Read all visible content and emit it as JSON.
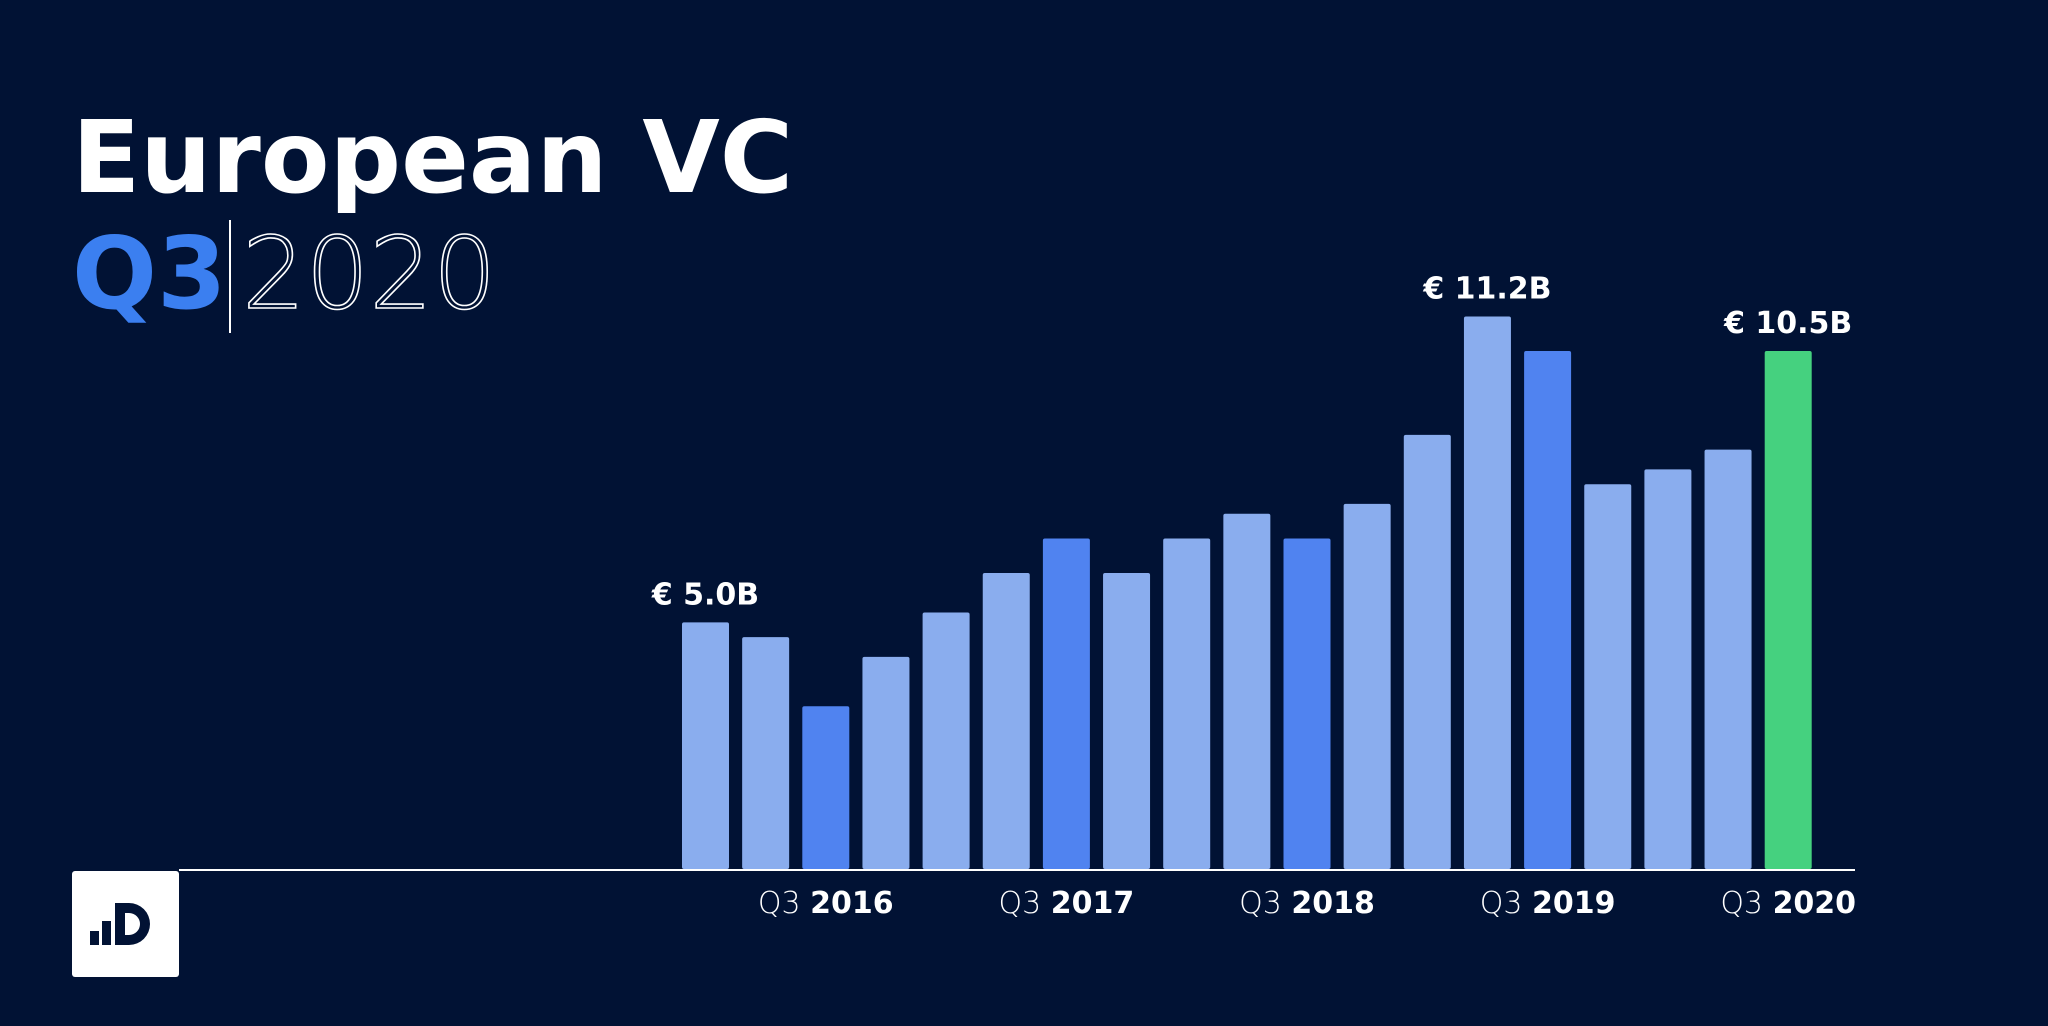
{
  "chart_data": {
    "type": "bar",
    "title": "European VC",
    "subtitle_quarter": "Q3",
    "subtitle_year": "2020",
    "categories": [
      null,
      null,
      "Q3 2016",
      null,
      null,
      null,
      "Q3 2017",
      null,
      null,
      null,
      "Q3 2018",
      null,
      null,
      null,
      "Q3 2019",
      null,
      null,
      null,
      "Q3 2020"
    ],
    "values": [
      5.0,
      4.7,
      3.3,
      4.3,
      5.2,
      6.0,
      6.7,
      6.0,
      6.7,
      7.2,
      6.7,
      7.4,
      8.8,
      11.2,
      10.5,
      7.8,
      8.1,
      8.5,
      10.5
    ],
    "value_labels": [
      "€ 5.0B",
      null,
      null,
      null,
      null,
      null,
      null,
      null,
      null,
      null,
      null,
      null,
      null,
      "€ 11.2B",
      null,
      null,
      null,
      null,
      "€ 10.5B"
    ],
    "colors": [
      "#8aadee",
      "#8aadee",
      "#5083f0",
      "#8aadee",
      "#8aadee",
      "#8aadee",
      "#5083f0",
      "#8aadee",
      "#8aadee",
      "#8aadee",
      "#5083f0",
      "#8aadee",
      "#8aadee",
      "#8aadee",
      "#5083f0",
      "#8aadee",
      "#8aadee",
      "#8aadee",
      "#45d17f"
    ],
    "ylim": [
      0,
      12
    ]
  }
}
